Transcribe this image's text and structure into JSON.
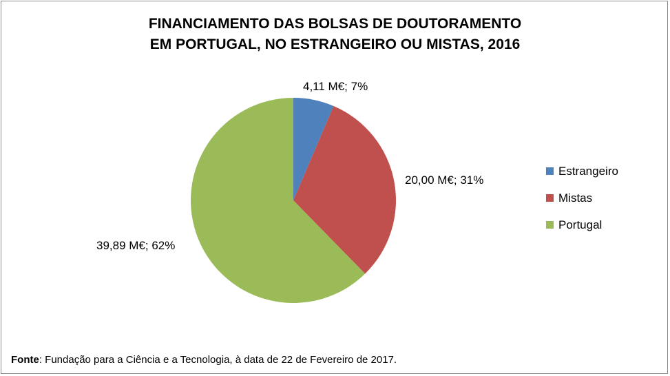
{
  "chart_data": {
    "type": "pie",
    "title_lines": [
      "FINANCIAMENTO DAS BOLSAS DE DOUTORAMENTO",
      "EM PORTUGAL, NO ESTRANGEIRO OU MISTAS, 2016"
    ],
    "categories": [
      "Estrangeiro",
      "Mistas",
      "Portugal"
    ],
    "values": [
      4.11,
      20.0,
      39.89
    ],
    "percentages": [
      7,
      31,
      62
    ],
    "data_labels": [
      "4,11 M€; 7%",
      "20,00 M€; 31%",
      "39,89 M€; 62%"
    ],
    "colors": [
      "#4F81BD",
      "#C0504D",
      "#9BBB59"
    ],
    "legend_position": "right"
  },
  "source": {
    "label": "Fonte",
    "text": ": Fundação para a Ciência e a Tecnologia, à data de 22 de Fevereiro de 2017."
  }
}
